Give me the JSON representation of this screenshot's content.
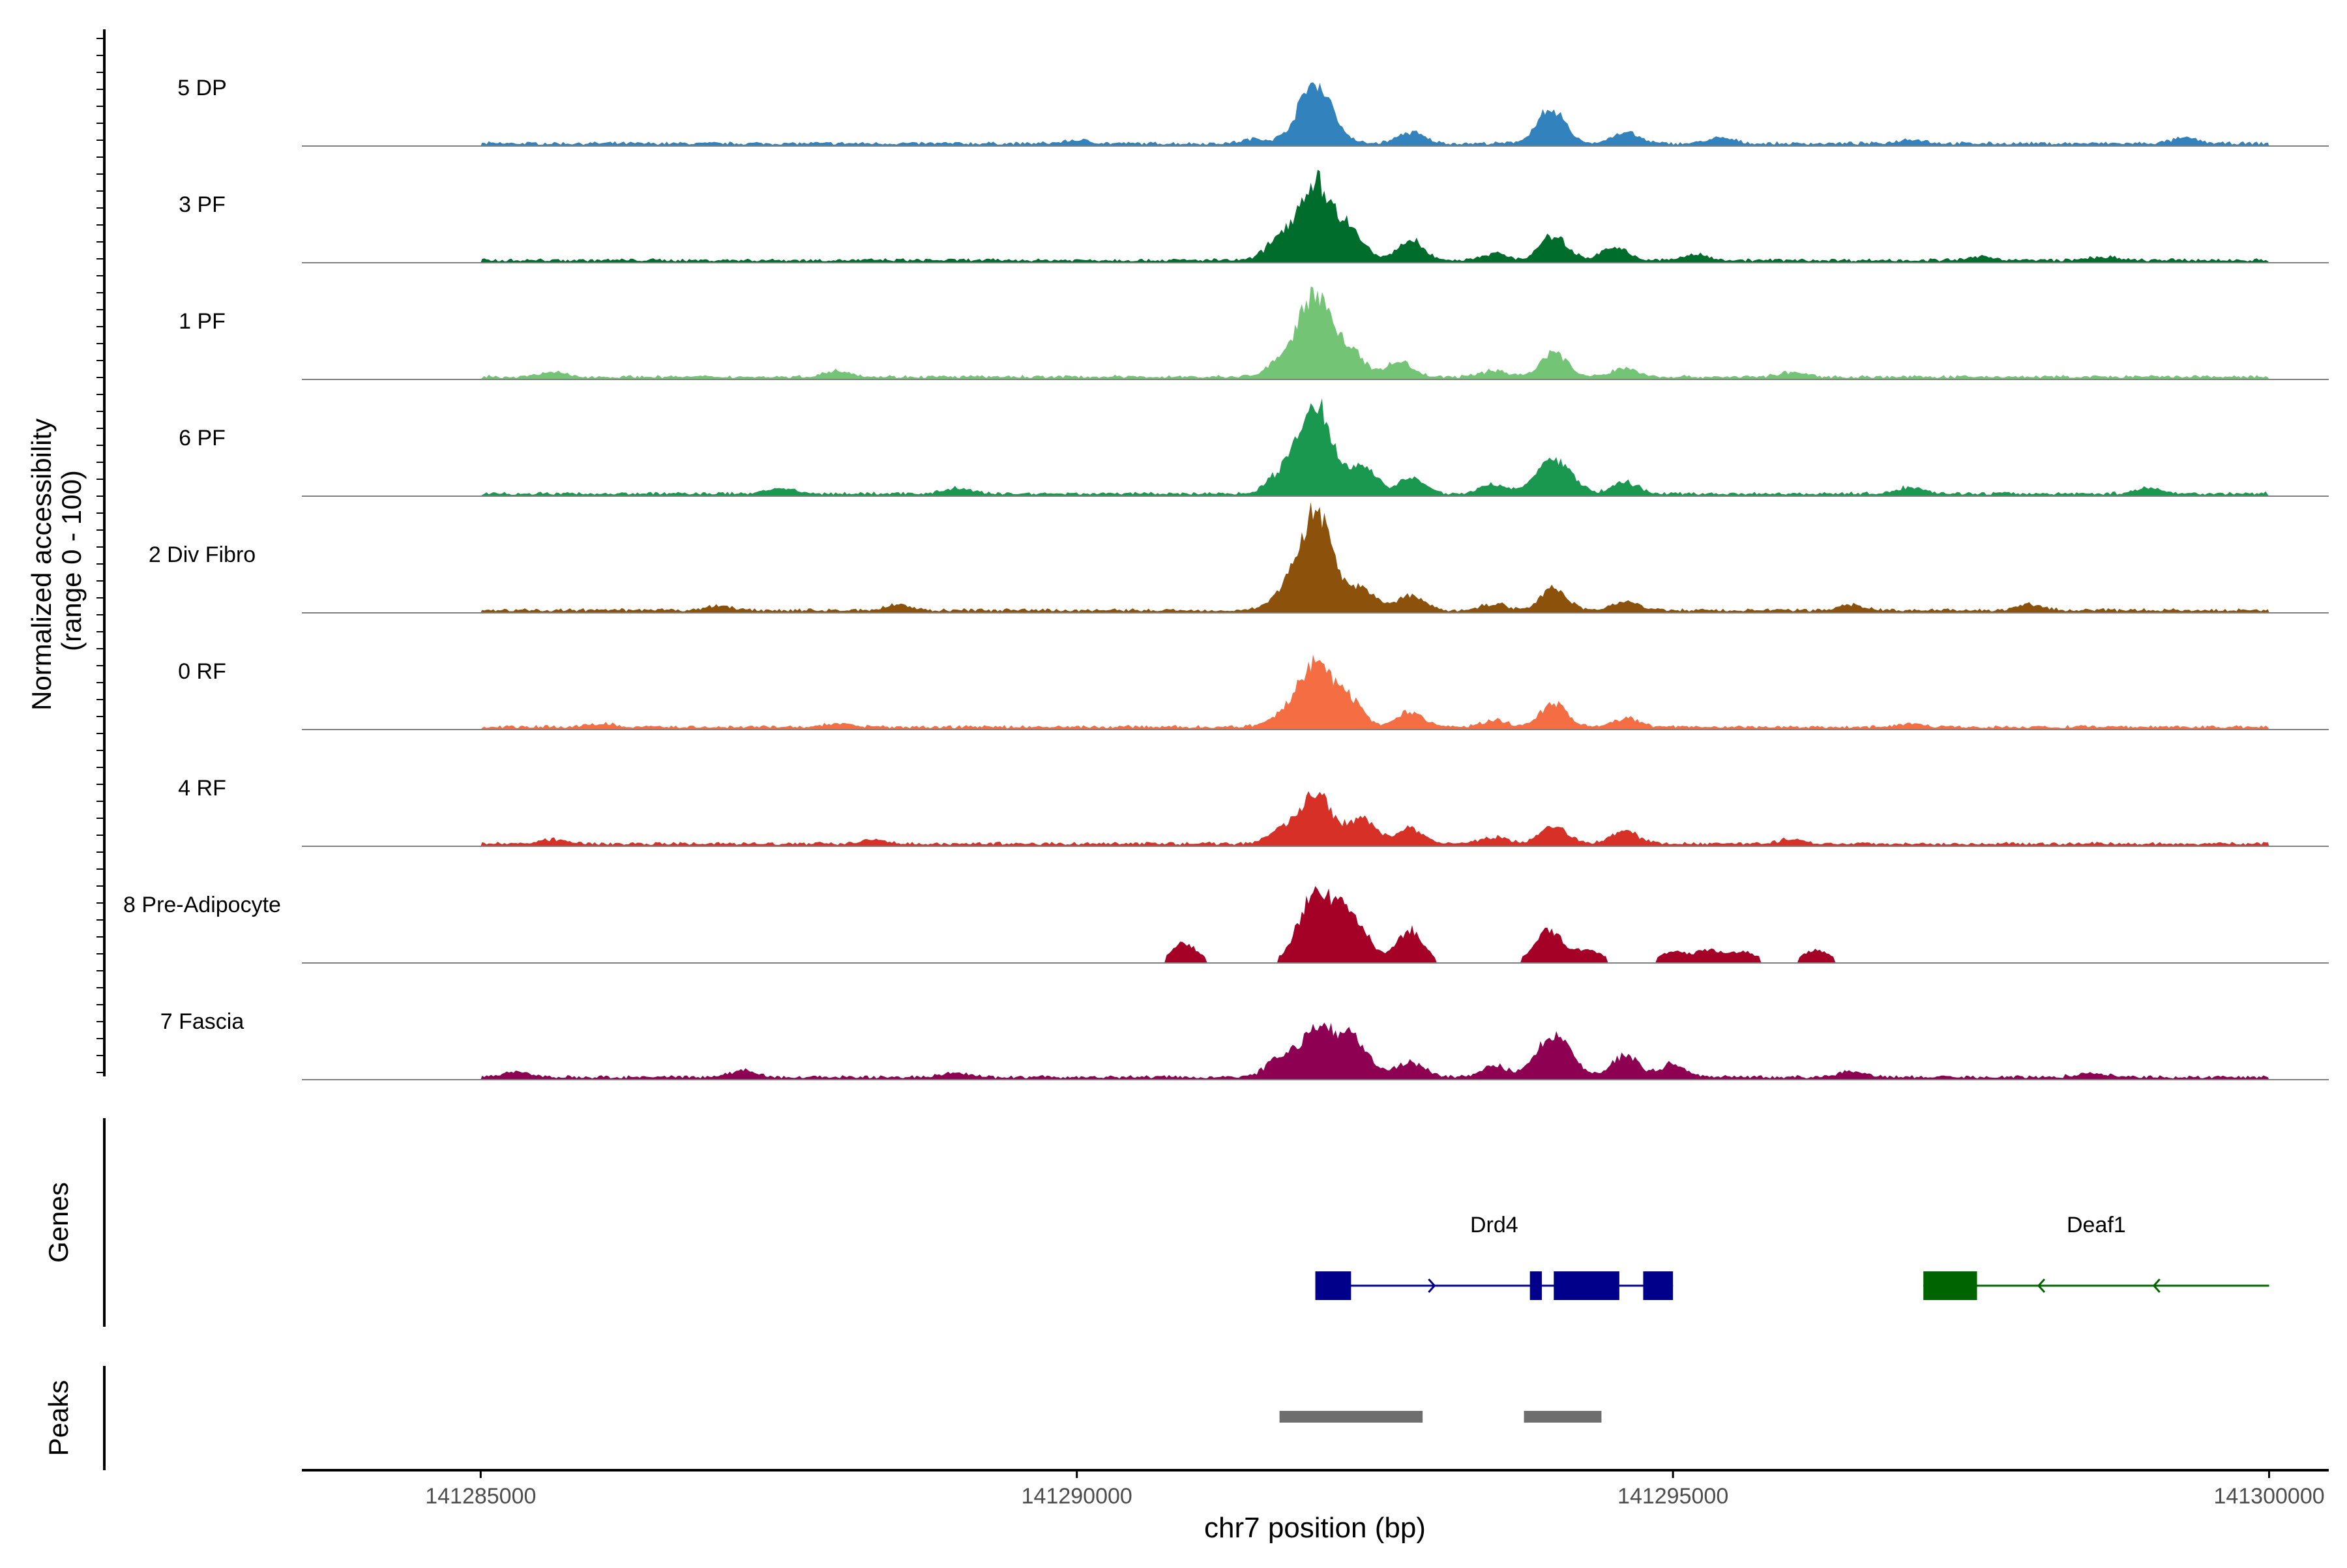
{
  "chart_data": {
    "type": "area",
    "title": "",
    "xlabel": "chr7 position (bp)",
    "coverage_ylabel_line1": "Normalized accessibility",
    "coverage_ylabel_line2": "(range 0 - 100)",
    "xlim": [
      141283500,
      141300500
    ],
    "x_ticks": [
      141285000,
      141290000,
      141295000,
      141300000
    ],
    "x_tick_labels": [
      "141285000",
      "141290000",
      "141295000",
      "141300000"
    ],
    "grid": false,
    "legend": "none",
    "coverage_ylim": [
      0,
      100
    ],
    "tracks": [
      {
        "name": "5 DP",
        "color": "#3182bd",
        "peaks": [
          [
            141290000,
            3
          ],
          [
            141291500,
            4
          ],
          [
            141292000,
            55
          ],
          [
            141292800,
            10
          ],
          [
            141293900,
            8
          ],
          [
            141294000,
            25
          ],
          [
            141294600,
            10
          ],
          [
            141295400,
            5
          ],
          [
            141297000,
            4
          ],
          [
            141299300,
            5
          ]
        ]
      },
      {
        "name": "3 PF",
        "color": "#006d2c",
        "peaks": [
          [
            141291700,
            18
          ],
          [
            141292000,
            70
          ],
          [
            141292300,
            25
          ],
          [
            141292800,
            18
          ],
          [
            141293500,
            6
          ],
          [
            141294000,
            22
          ],
          [
            141294500,
            12
          ],
          [
            141295200,
            5
          ],
          [
            141297600,
            3
          ],
          [
            141298600,
            3
          ]
        ]
      },
      {
        "name": "1 PF",
        "color": "#74c476",
        "peaks": [
          [
            141285600,
            4
          ],
          [
            141288000,
            6
          ],
          [
            141291700,
            12
          ],
          [
            141292000,
            75
          ],
          [
            141292300,
            20
          ],
          [
            141292700,
            14
          ],
          [
            141293500,
            6
          ],
          [
            141294000,
            22
          ],
          [
            141294600,
            8
          ],
          [
            141296000,
            4
          ]
        ]
      },
      {
        "name": "6 PF",
        "color": "#1a9850",
        "peaks": [
          [
            141287500,
            5
          ],
          [
            141289000,
            5
          ],
          [
            141291700,
            15
          ],
          [
            141292000,
            80
          ],
          [
            141292400,
            25
          ],
          [
            141292800,
            14
          ],
          [
            141293500,
            8
          ],
          [
            141294000,
            32
          ],
          [
            141294600,
            10
          ],
          [
            141297000,
            6
          ],
          [
            141299000,
            5
          ]
        ]
      },
      {
        "name": "2 Div Fibro",
        "color": "#8c510a",
        "peaks": [
          [
            141287000,
            4
          ],
          [
            141288500,
            5
          ],
          [
            141291700,
            10
          ],
          [
            141292000,
            90
          ],
          [
            141292400,
            20
          ],
          [
            141292800,
            14
          ],
          [
            141293500,
            6
          ],
          [
            141294000,
            20
          ],
          [
            141294600,
            8
          ],
          [
            141296500,
            5
          ],
          [
            141298000,
            5
          ]
        ]
      },
      {
        "name": "0 RF",
        "color": "#f46d43",
        "peaks": [
          [
            141286000,
            3
          ],
          [
            141288000,
            3
          ],
          [
            141291700,
            8
          ],
          [
            141292000,
            60
          ],
          [
            141292300,
            22
          ],
          [
            141292800,
            14
          ],
          [
            141293500,
            6
          ],
          [
            141294000,
            22
          ],
          [
            141294600,
            8
          ],
          [
            141297000,
            3
          ]
        ]
      },
      {
        "name": "4 RF",
        "color": "#d73027",
        "peaks": [
          [
            141285600,
            4
          ],
          [
            141288300,
            4
          ],
          [
            141291700,
            10
          ],
          [
            141292000,
            45
          ],
          [
            141292400,
            22
          ],
          [
            141292800,
            14
          ],
          [
            141293500,
            6
          ],
          [
            141294000,
            16
          ],
          [
            141294600,
            12
          ],
          [
            141296000,
            4
          ]
        ]
      },
      {
        "name": "8 Pre-Adipocyte",
        "color": "#a50026",
        "peaks": [
          [
            141290900,
            18
          ],
          [
            141292000,
            62
          ],
          [
            141292300,
            40
          ],
          [
            141292800,
            30
          ],
          [
            141293900,
            14
          ],
          [
            141294000,
            18
          ],
          [
            141294300,
            12
          ],
          [
            141295000,
            10
          ],
          [
            141295300,
            12
          ],
          [
            141295600,
            10
          ],
          [
            141296200,
            12
          ]
        ]
      },
      {
        "name": "7 Fascia",
        "color": "#8e0152",
        "peaks": [
          [
            141285300,
            5
          ],
          [
            141287200,
            6
          ],
          [
            141289000,
            4
          ],
          [
            141291700,
            16
          ],
          [
            141292000,
            40
          ],
          [
            141292300,
            35
          ],
          [
            141292800,
            14
          ],
          [
            141293500,
            10
          ],
          [
            141294000,
            38
          ],
          [
            141294600,
            20
          ],
          [
            141295000,
            12
          ],
          [
            141296500,
            6
          ],
          [
            141298500,
            4
          ]
        ]
      }
    ],
    "genes_label": "Genes",
    "genes": [
      {
        "name": "Drd4",
        "strand": "+",
        "color": "#00008b",
        "start": 141292000,
        "end": 141295000,
        "exons": [
          [
            141292000,
            141292300
          ],
          [
            141293800,
            141293900
          ],
          [
            141294000,
            141294550
          ],
          [
            141294750,
            141295000
          ]
        ]
      },
      {
        "name": "Deaf1",
        "strand": "-",
        "color": "#006400",
        "start": 141297100,
        "end": 141300000,
        "exons": [
          [
            141297100,
            141297550
          ]
        ]
      }
    ],
    "peaks_label": "Peaks",
    "peak_regions": [
      [
        141291700,
        141292900
      ],
      [
        141293750,
        141294400
      ]
    ],
    "peak_color": "#6e6e6e"
  }
}
